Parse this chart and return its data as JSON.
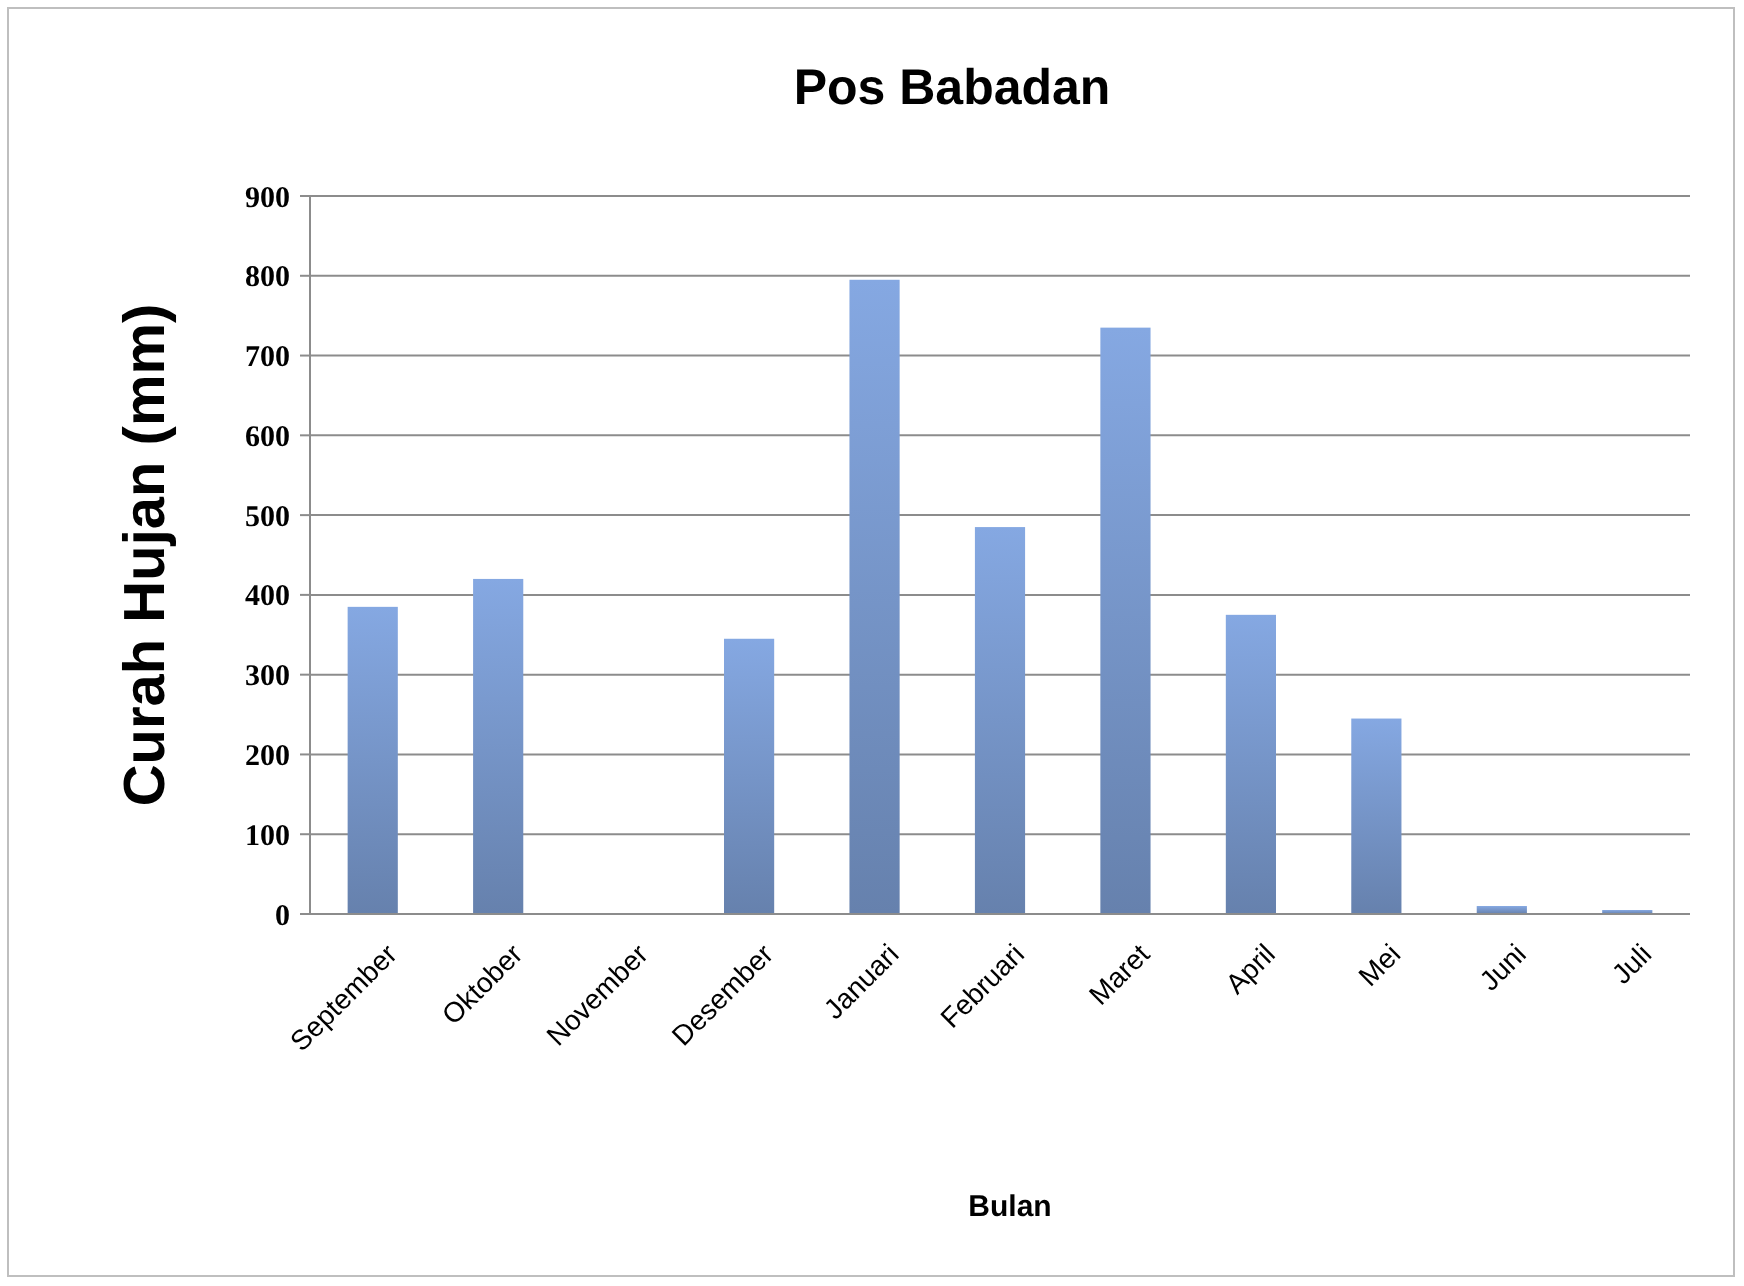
{
  "chart_data": {
    "type": "bar",
    "title": "Pos Babadan",
    "xlabel": "Bulan",
    "ylabel": "Curah Hujan (mm)",
    "categories": [
      "September",
      "Oktober",
      "November",
      "Desember",
      "Januari",
      "Februari",
      "Maret",
      "April",
      "Mei",
      "Juni",
      "Juli"
    ],
    "values": [
      385,
      420,
      null,
      345,
      795,
      485,
      735,
      375,
      245,
      10,
      5
    ],
    "color": "#7a9acf",
    "ylim": [
      0,
      900
    ],
    "yticks": [
      0,
      100,
      200,
      300,
      400,
      500,
      600,
      700,
      800,
      900
    ],
    "grid": "y"
  }
}
